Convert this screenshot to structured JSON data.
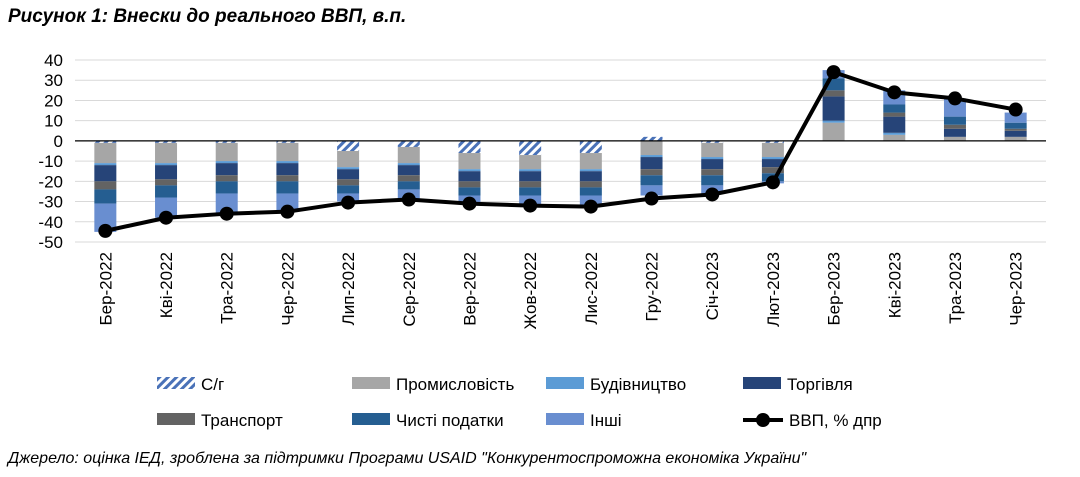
{
  "title": "Рисунок 1: Внески до реального ВВП, в.п.",
  "source": "Джерело: оцінка ІЕД, зроблена за підтримки Програми USAID \"Конкурентоспроможна економіка України\"",
  "chart_data": {
    "type": "bar",
    "stacked": true,
    "categories": [
      "Бер-2022",
      "Кві-2022",
      "Тра-2022",
      "Чер-2022",
      "Лип-2022",
      "Сер-2022",
      "Вер-2022",
      "Жов-2022",
      "Лис-2022",
      "Гру-2022",
      "Січ-2023",
      "Лют-2023",
      "Бер-2023",
      "Кві-2023",
      "Тра-2023",
      "Чер-2023"
    ],
    "ylim": [
      -50,
      40
    ],
    "yticks": [
      40,
      30,
      20,
      10,
      0,
      -10,
      -20,
      -30,
      -40,
      -50
    ],
    "grid": true,
    "legend_position": "bottom",
    "series": [
      {
        "name": "С/г",
        "key": "agri",
        "color": "#4a72b8",
        "pattern": "hatch",
        "values": [
          -1,
          -1,
          -1,
          -1,
          -5,
          -3,
          -6,
          -7,
          -6,
          2,
          -1,
          -1,
          0,
          0,
          0,
          0
        ]
      },
      {
        "name": "Промисловість",
        "key": "industry",
        "color": "#a6a6a6",
        "values": [
          -10,
          -10,
          -9,
          -9,
          -8,
          -8,
          -8,
          -7,
          -8,
          -7,
          -7,
          -7,
          9,
          3,
          2,
          2
        ]
      },
      {
        "name": "Будівництво",
        "key": "construction",
        "color": "#5b9bd5",
        "values": [
          -1,
          -1,
          -1,
          -1,
          -1,
          -1,
          -1,
          -1,
          -1,
          -1,
          -1,
          -1,
          1,
          1,
          0,
          0
        ]
      },
      {
        "name": "Торгівля",
        "key": "trade",
        "color": "#264478",
        "values": [
          -8,
          -7,
          -6,
          -6,
          -5,
          -5,
          -5,
          -5,
          -5,
          -6,
          -5,
          -4,
          12,
          8,
          4,
          3
        ]
      },
      {
        "name": "Транспорт",
        "key": "transport",
        "color": "#636363",
        "values": [
          -4,
          -3,
          -3,
          -3,
          -3,
          -3,
          -3,
          -3,
          -3,
          -3,
          -3,
          -3,
          3,
          2,
          2,
          1
        ]
      },
      {
        "name": "Чисті податки",
        "key": "taxes",
        "color": "#255e91",
        "values": [
          -7,
          -6,
          -6,
          -6,
          -4,
          -4,
          -4,
          -4,
          -4,
          -5,
          -5,
          -4,
          6,
          4,
          4,
          3
        ]
      },
      {
        "name": "Інші",
        "key": "other",
        "color": "#698ed0",
        "values": [
          -14,
          -10,
          -10,
          -9,
          -4,
          -5,
          -4,
          -5,
          -5,
          -5,
          -4,
          -1,
          4,
          7,
          9,
          5
        ]
      }
    ],
    "line_series": {
      "name": "ВВП, % дпр",
      "color": "#000000",
      "values": [
        -44.5,
        -38,
        -36,
        -35,
        -30.5,
        -29,
        -31,
        -32,
        -32.5,
        -28.5,
        -26.5,
        -20.5,
        34,
        24,
        21,
        15.5
      ]
    }
  }
}
